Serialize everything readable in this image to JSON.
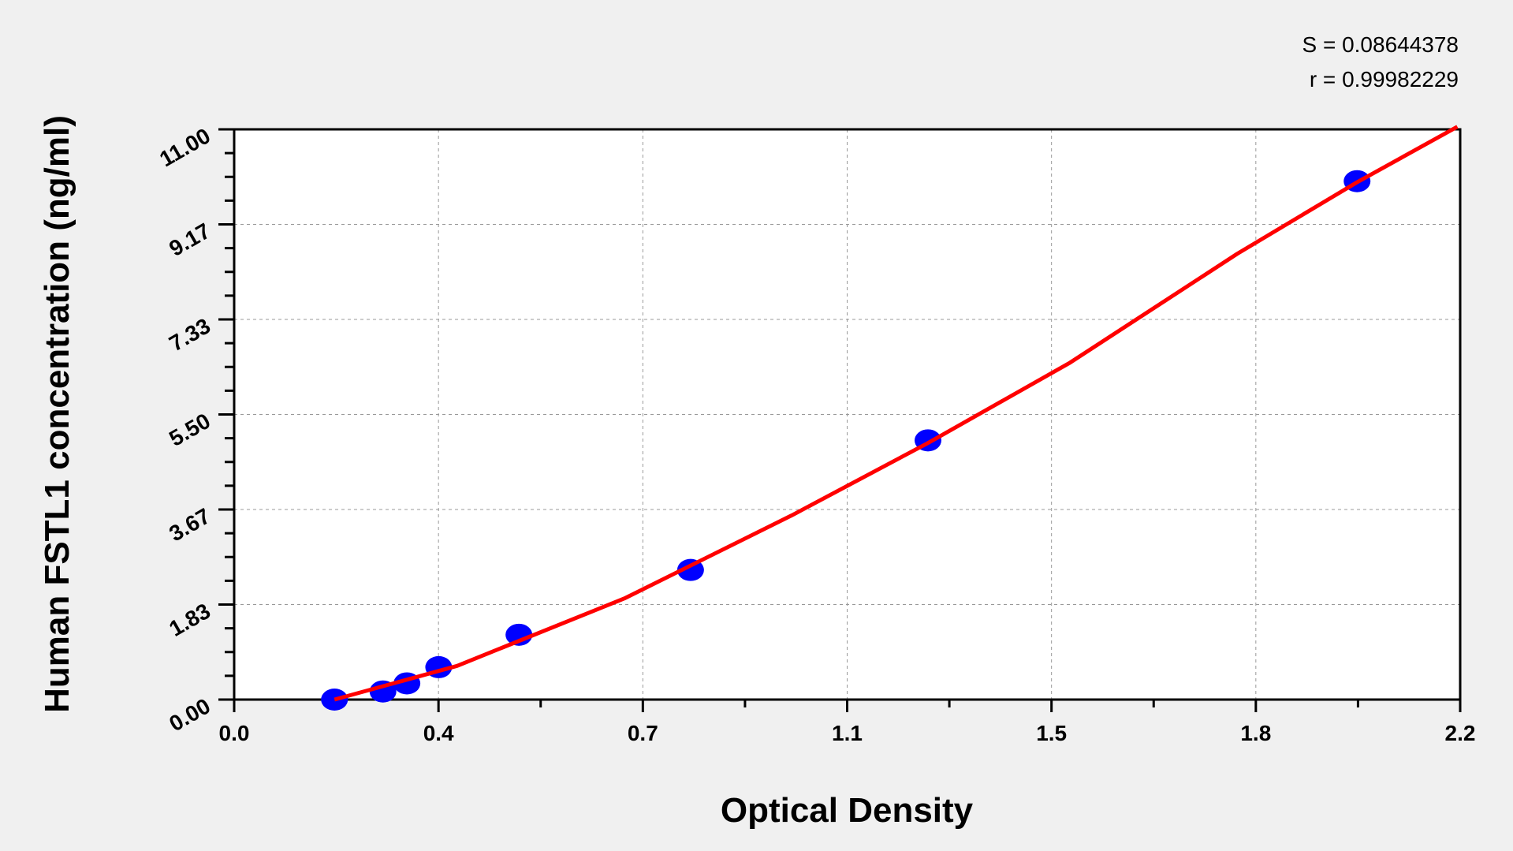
{
  "chart_data": {
    "type": "scatter",
    "title": "",
    "xlabel": "Optical Density",
    "ylabel": "Human FSTL1 concentration (ng/ml)",
    "xlim": [
      0.0,
      2.2
    ],
    "ylim": [
      0.0,
      11.0
    ],
    "x_ticks": [
      "0.0",
      "0.4",
      "0.7",
      "1.1",
      "1.5",
      "1.8",
      "2.2"
    ],
    "y_ticks": [
      "0.00",
      "1.83",
      "3.67",
      "5.50",
      "7.33",
      "9.17",
      "11.00"
    ],
    "grid": true,
    "stats": {
      "s": "S = 0.08644378",
      "r": "r = 0.99982229"
    },
    "points": {
      "x": [
        0.18,
        0.267,
        0.31,
        0.367,
        0.511,
        0.819,
        1.245,
        2.015
      ],
      "y": [
        0.0,
        0.156,
        0.312,
        0.625,
        1.25,
        2.5,
        5.0,
        10.0
      ],
      "color": "#0000ff"
    },
    "fit_curve": {
      "x": [
        0.18,
        0.4,
        0.7,
        1.0,
        1.245,
        1.5,
        1.8,
        2.015,
        2.195
      ],
      "y": [
        0.0,
        0.65,
        1.95,
        3.55,
        4.95,
        6.5,
        8.6,
        9.98,
        11.05
      ],
      "color": "#ff0000"
    }
  }
}
